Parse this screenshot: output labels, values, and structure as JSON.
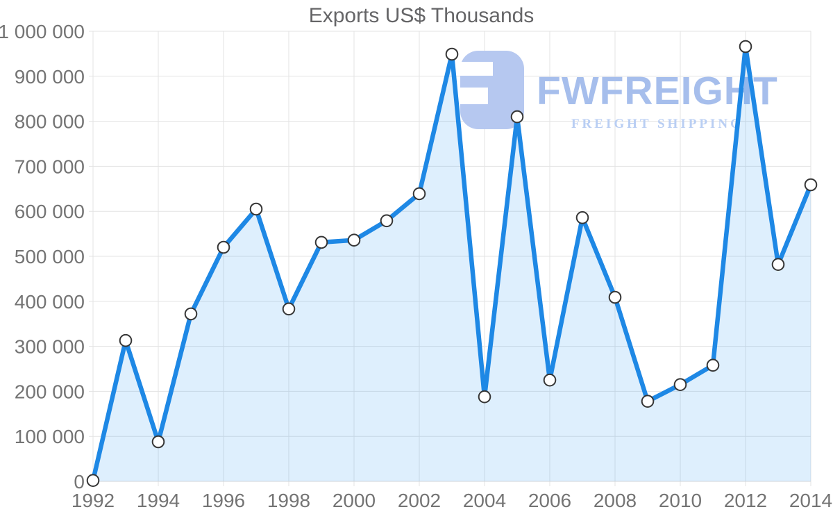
{
  "title": "Exports US$ Thousands",
  "logo": {
    "wordmark": "FWFREIGHT",
    "tagline": "FREIGHT SHIPPING",
    "icon": "fwfreight-logo-icon",
    "icon_color": "#b6c8f0",
    "wordmark_color": "#a6beec",
    "tagline_color": "#b9cef3"
  },
  "chart_data": {
    "type": "area",
    "title": "Exports US$ Thousands",
    "x": [
      1992,
      1993,
      1994,
      1995,
      1996,
      1997,
      1998,
      1999,
      2000,
      2001,
      2002,
      2003,
      2004,
      2005,
      2006,
      2007,
      2008,
      2009,
      2010,
      2011,
      2012,
      2013,
      2014
    ],
    "values": [
      2000,
      313000,
      88000,
      372000,
      520000,
      605000,
      383000,
      531000,
      536000,
      579000,
      639000,
      949000,
      188000,
      810000,
      225000,
      586000,
      409000,
      178000,
      215000,
      258000,
      966000,
      482000,
      659000
    ],
    "xlabel": "",
    "ylabel": "",
    "ylim": [
      0,
      1000000
    ],
    "ytick_step": 100000,
    "xticks": [
      1992,
      1994,
      1996,
      1998,
      2000,
      2002,
      2004,
      2006,
      2008,
      2010,
      2012,
      2014
    ],
    "grid": true,
    "legend_position": "none",
    "line_color": "#1e88e5",
    "fill_color": "rgba(33,150,243,0.15)",
    "grid_color": "#e3e3e3",
    "axis_label_color": "#747474",
    "marker_fill": "#ffffff",
    "marker_stroke": "#363636"
  }
}
